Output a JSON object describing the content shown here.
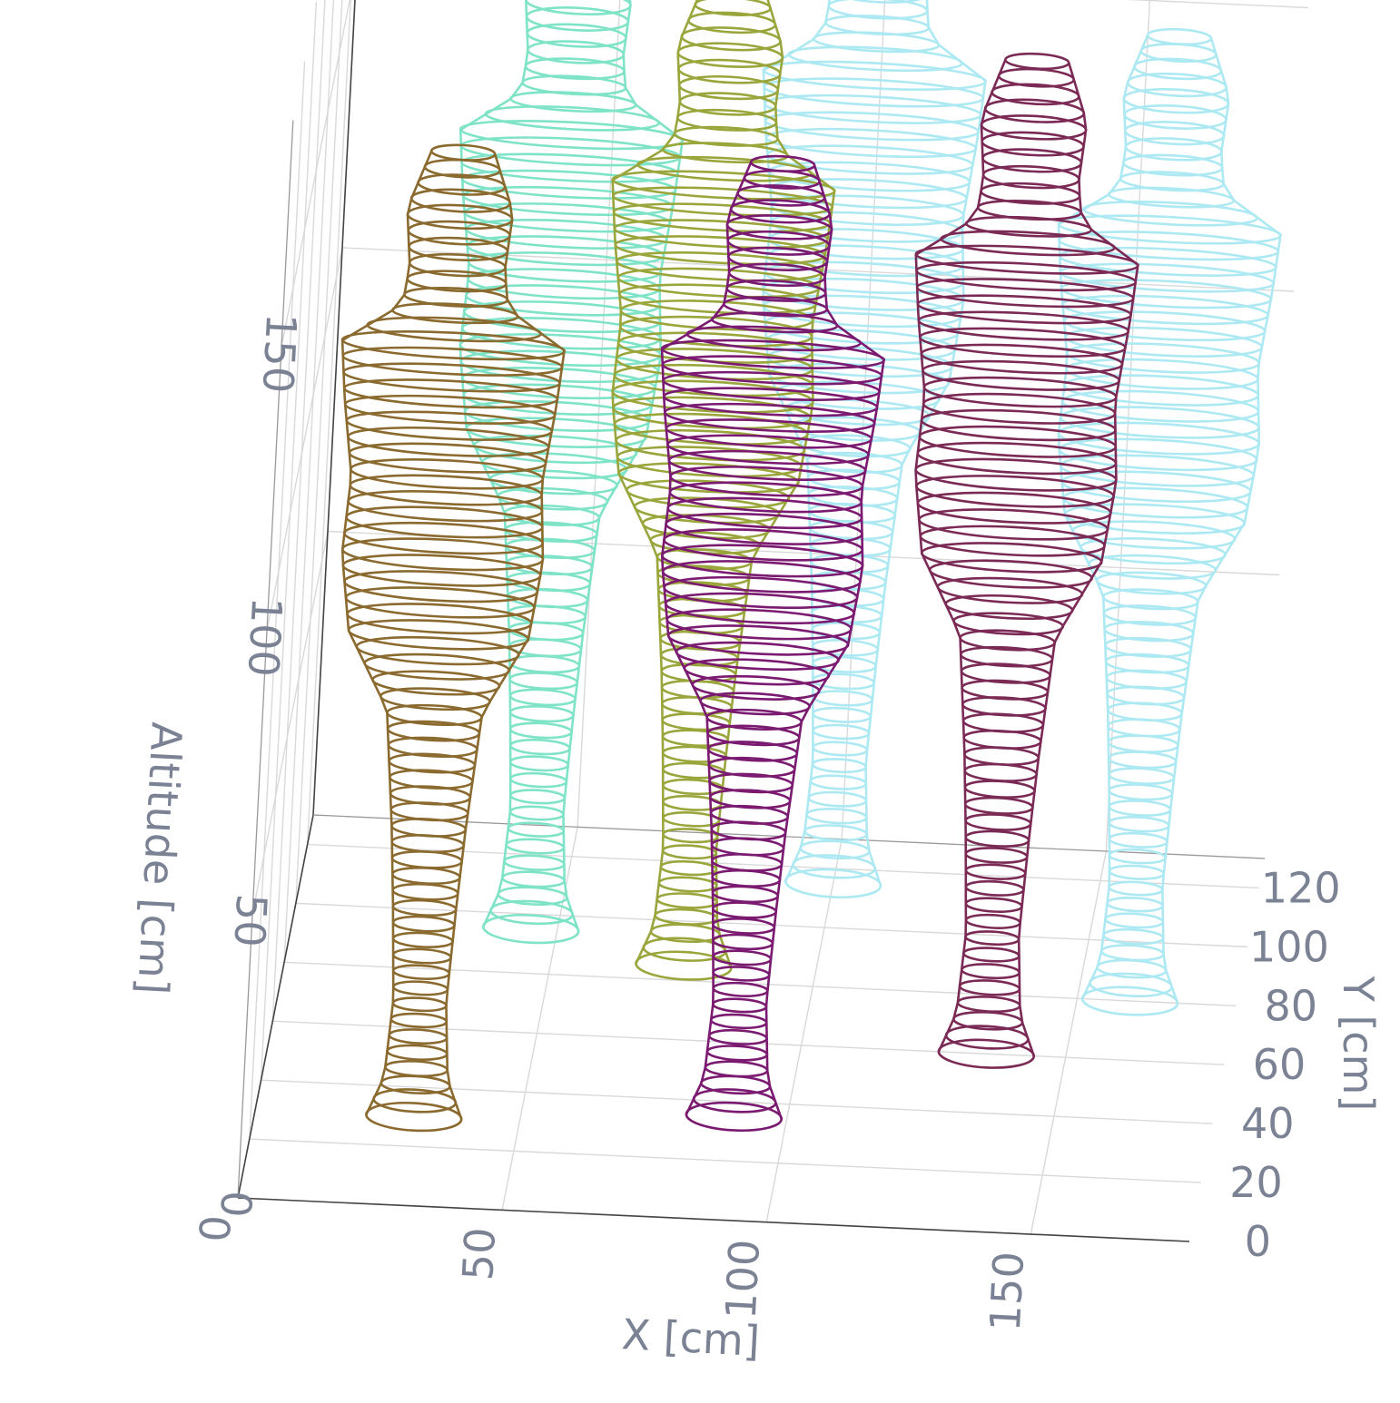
{
  "chart_data": {
    "type": "scatter3d",
    "x_axis": {
      "title": "X [cm]",
      "ticks": [
        "0",
        "50",
        "100",
        "150"
      ],
      "range": [
        0,
        180
      ]
    },
    "y_axis": {
      "title": "Y [cm]",
      "ticks": [
        "0",
        "20",
        "40",
        "60",
        "80",
        "100",
        "120"
      ],
      "range": [
        0,
        130
      ]
    },
    "z_axis": {
      "title": "Altitude [cm]",
      "ticks": [
        "0",
        "50",
        "100",
        "150"
      ],
      "range": [
        0,
        190
      ]
    },
    "grid": true,
    "legend": "none",
    "series": [
      {
        "color": "#8a6a2e",
        "x": 30,
        "y": 30,
        "height": 170
      },
      {
        "color": "#7fe3c7",
        "x": 45,
        "y": 95,
        "height": 175
      },
      {
        "color": "#9aa63c",
        "x": 75,
        "y": 85,
        "height": 172
      },
      {
        "color": "#ade9f2",
        "x": 100,
        "y": 115,
        "height": 178
      },
      {
        "color": "#7a1a70",
        "x": 90,
        "y": 35,
        "height": 168
      },
      {
        "color": "#7a2a55",
        "x": 135,
        "y": 60,
        "height": 175
      },
      {
        "color": "#ade9f2",
        "x": 160,
        "y": 80,
        "height": 170
      }
    ]
  }
}
